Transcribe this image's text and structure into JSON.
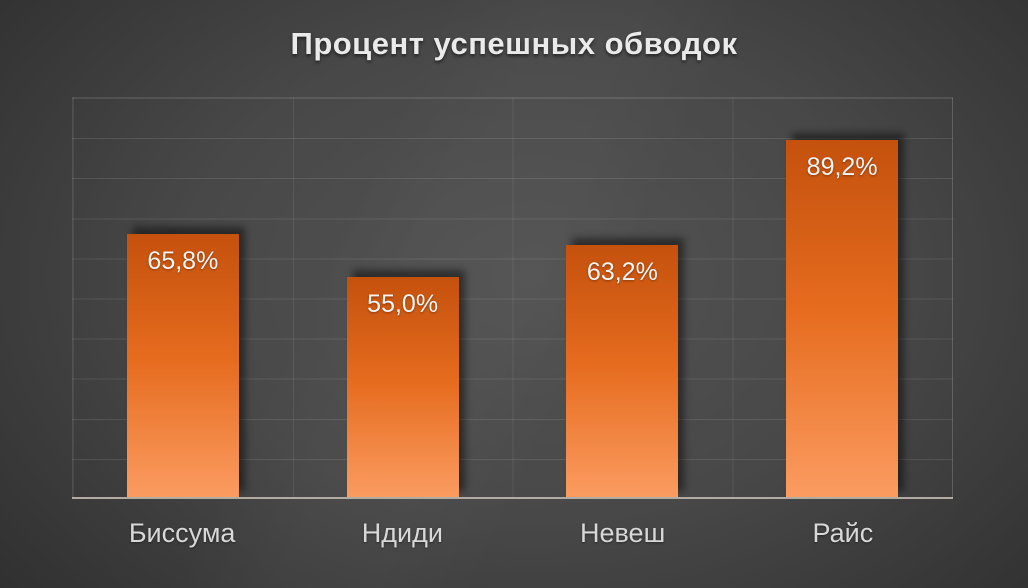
{
  "chart_data": {
    "type": "bar",
    "title": "Процент успешных обводок",
    "categories": [
      "Биссума",
      "Ндиди",
      "Невеш",
      "Райс"
    ],
    "values": [
      65.8,
      55.0,
      63.2,
      89.2
    ],
    "value_labels": [
      "65,8%",
      "55,0%",
      "63,2%",
      "89,2%"
    ],
    "xlabel": "",
    "ylabel": "",
    "ylim": [
      0,
      100
    ],
    "grid": "on",
    "grid_step_percent": 10,
    "y_tick_labels_visible": false,
    "legend": "none",
    "decimal_separator": ",",
    "colors": {
      "bar_gradient_top": "#c4510d",
      "bar_gradient_mid": "#e66c1f",
      "bar_gradient_bottom": "#fb9c61",
      "background_center": "#535353",
      "background_edge": "#212121",
      "title": "#eaeaea",
      "value_label": "#f4f4f4",
      "category_label": "#d8d8d8",
      "axis_line": "#b2aba1"
    }
  }
}
